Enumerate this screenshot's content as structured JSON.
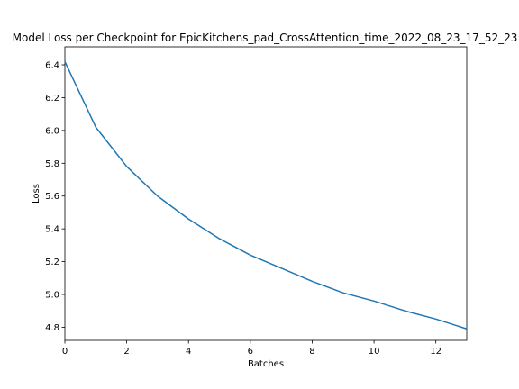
{
  "chart_data": {
    "type": "line",
    "title": "Model Loss per Checkpoint for EpicKitchens_pad_CrossAttention_time_2022_08_23_17_52_23",
    "xlabel": "Batches",
    "ylabel": "Loss",
    "xlim": [
      0,
      13
    ],
    "ylim": [
      4.72,
      6.51
    ],
    "x_ticks": [
      0,
      2,
      4,
      6,
      8,
      10,
      12
    ],
    "y_ticks": [
      4.8,
      5.0,
      5.2,
      5.4,
      5.6,
      5.8,
      6.0,
      6.2,
      6.4
    ],
    "grid": false,
    "legend": "none",
    "series_color": "#1f77b4",
    "series": [
      {
        "x": [
          0,
          1,
          2,
          3,
          4,
          5,
          6,
          7,
          8,
          9,
          10,
          11,
          12,
          13
        ],
        "values": [
          6.42,
          6.02,
          5.78,
          5.6,
          5.46,
          5.34,
          5.24,
          5.16,
          5.08,
          5.01,
          4.96,
          4.9,
          4.85,
          4.79
        ]
      }
    ]
  }
}
